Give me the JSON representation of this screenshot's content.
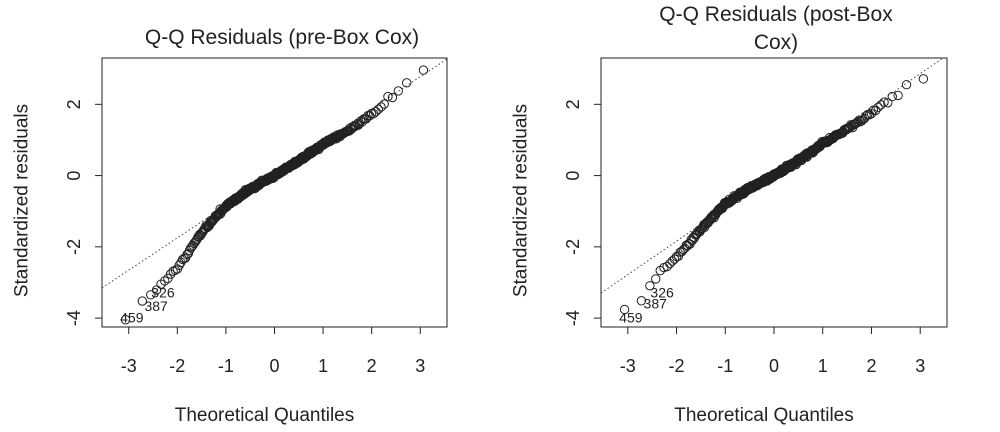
{
  "chart_data": [
    {
      "type": "scatter",
      "title_lines": [
        "Q-Q Residuals (pre-Box Cox)"
      ],
      "xlabel": "Theoretical Quantiles",
      "ylabel": "Standardized residuals",
      "xlim": [
        -3.55,
        3.55
      ],
      "ylim": [
        -4.25,
        3.3
      ],
      "xticks": [
        -3,
        -2,
        -1,
        0,
        1,
        2,
        3
      ],
      "yticks": [
        -4,
        -2,
        0,
        2
      ],
      "grid": false,
      "reference_line": {
        "intercept": 0.06,
        "slope": 0.905
      },
      "qq_curve": [
        [
          -3.3,
          -3.95
        ],
        [
          -2.8,
          -3.72
        ],
        [
          -2.5,
          -3.25
        ],
        [
          -2.0,
          -2.6
        ],
        [
          -1.5,
          -1.6
        ],
        [
          -1.0,
          -0.85
        ],
        [
          -0.5,
          -0.38
        ],
        [
          0.0,
          0.0
        ],
        [
          0.5,
          0.42
        ],
        [
          1.0,
          0.88
        ],
        [
          1.5,
          1.25
        ],
        [
          2.0,
          1.7
        ],
        [
          2.3,
          2.1
        ],
        [
          2.6,
          2.4
        ],
        [
          2.9,
          2.8
        ],
        [
          3.3,
          3.02
        ]
      ],
      "point_count": 460,
      "labeled_points": [
        {
          "label": "459",
          "x": -3.3,
          "y": -3.95
        },
        {
          "label": "387",
          "x": -2.8,
          "y": -3.72
        },
        {
          "label": "326",
          "x": -2.7,
          "y": -3.45
        }
      ]
    },
    {
      "type": "scatter",
      "title_lines": [
        "Q-Q Residuals (post-Box",
        "Cox)"
      ],
      "xlabel": "Theoretical Quantiles",
      "ylabel": "Standardized residuals",
      "xlim": [
        -3.55,
        3.55
      ],
      "ylim": [
        -4.25,
        3.3
      ],
      "xticks": [
        -3,
        -2,
        -1,
        0,
        1,
        2,
        3
      ],
      "yticks": [
        -4,
        -2,
        0,
        2
      ],
      "grid": false,
      "reference_line": {
        "intercept": 0.04,
        "slope": 0.94
      },
      "qq_curve": [
        [
          -3.3,
          -3.95
        ],
        [
          -2.8,
          -3.65
        ],
        [
          -2.5,
          -2.95
        ],
        [
          -2.0,
          -2.3
        ],
        [
          -1.5,
          -1.5
        ],
        [
          -1.0,
          -0.8
        ],
        [
          -0.5,
          -0.35
        ],
        [
          0.0,
          0.0
        ],
        [
          0.5,
          0.42
        ],
        [
          1.0,
          0.9
        ],
        [
          1.5,
          1.3
        ],
        [
          2.0,
          1.75
        ],
        [
          2.3,
          2.05
        ],
        [
          2.6,
          2.4
        ],
        [
          2.9,
          2.62
        ],
        [
          3.3,
          3.0
        ]
      ],
      "point_count": 460,
      "labeled_points": [
        {
          "label": "459",
          "x": -3.3,
          "y": -3.95
        },
        {
          "label": "387",
          "x": -2.8,
          "y": -3.65
        },
        {
          "label": "326",
          "x": -2.7,
          "y": -3.45
        }
      ]
    }
  ]
}
